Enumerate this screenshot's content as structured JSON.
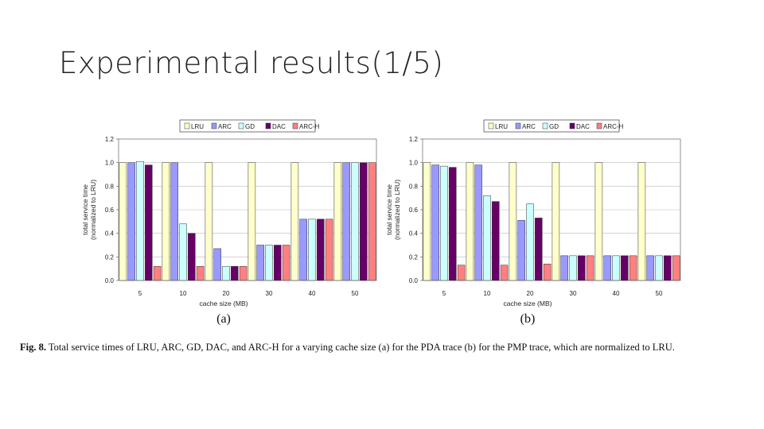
{
  "slide": {
    "title": "Experimental results(1/5)"
  },
  "caption": {
    "label": "Fig. 8.",
    "text": "Total service times of LRU, ARC, GD, DAC, and ARC-H for a varying cache size (a) for the PDA trace (b) for the PMP trace, which are normalized to LRU."
  },
  "colors": {
    "LRU": "#ffffcc",
    "ARC": "#9999ff",
    "GD": "#ccffff",
    "DAC": "#660066",
    "ARC-H": "#ff8080",
    "plot_bg": "#ffffff",
    "grid": "#bbbbbb"
  },
  "chart_data": [
    {
      "type": "bar",
      "label": "(a)",
      "categories": [
        "5",
        "10",
        "20",
        "30",
        "40",
        "50"
      ],
      "xlabel": "cache size (MB)",
      "ylabel_line1": "total service time",
      "ylabel_line2": "(normalized to LRU)",
      "ylim": [
        0,
        1.2
      ],
      "yticks": [
        "0.0",
        "0.2",
        "0.4",
        "0.6",
        "0.8",
        "1.0",
        "1.2"
      ],
      "grid": true,
      "legend_position": "top",
      "series": [
        {
          "name": "LRU",
          "values": [
            1.0,
            1.0,
            1.0,
            1.0,
            1.0,
            1.0
          ]
        },
        {
          "name": "ARC",
          "values": [
            1.0,
            1.0,
            0.27,
            0.3,
            0.52,
            1.0
          ]
        },
        {
          "name": "GD",
          "values": [
            1.01,
            0.48,
            0.12,
            0.3,
            0.52,
            1.0
          ]
        },
        {
          "name": "DAC",
          "values": [
            0.98,
            0.4,
            0.12,
            0.3,
            0.52,
            1.0
          ]
        },
        {
          "name": "ARC-H",
          "values": [
            0.12,
            0.12,
            0.12,
            0.3,
            0.52,
            1.0
          ]
        }
      ]
    },
    {
      "type": "bar",
      "label": "(b)",
      "categories": [
        "5",
        "10",
        "20",
        "30",
        "40",
        "50"
      ],
      "xlabel": "cache size (MB)",
      "ylabel_line1": "total service time",
      "ylabel_line2": "(normalized to LRU)",
      "ylim": [
        0,
        1.2
      ],
      "yticks": [
        "0.0",
        "0.2",
        "0.4",
        "0.6",
        "0.8",
        "1.0",
        "1.2"
      ],
      "grid": true,
      "legend_position": "top",
      "series": [
        {
          "name": "LRU",
          "values": [
            1.0,
            1.0,
            1.0,
            1.0,
            1.0,
            1.0
          ]
        },
        {
          "name": "ARC",
          "values": [
            0.98,
            0.98,
            0.51,
            0.21,
            0.21,
            0.21
          ]
        },
        {
          "name": "GD",
          "values": [
            0.97,
            0.72,
            0.65,
            0.21,
            0.21,
            0.21
          ]
        },
        {
          "name": "DAC",
          "values": [
            0.96,
            0.67,
            0.53,
            0.21,
            0.21,
            0.21
          ]
        },
        {
          "name": "ARC-H",
          "values": [
            0.13,
            0.13,
            0.14,
            0.21,
            0.21,
            0.21
          ]
        }
      ]
    }
  ]
}
